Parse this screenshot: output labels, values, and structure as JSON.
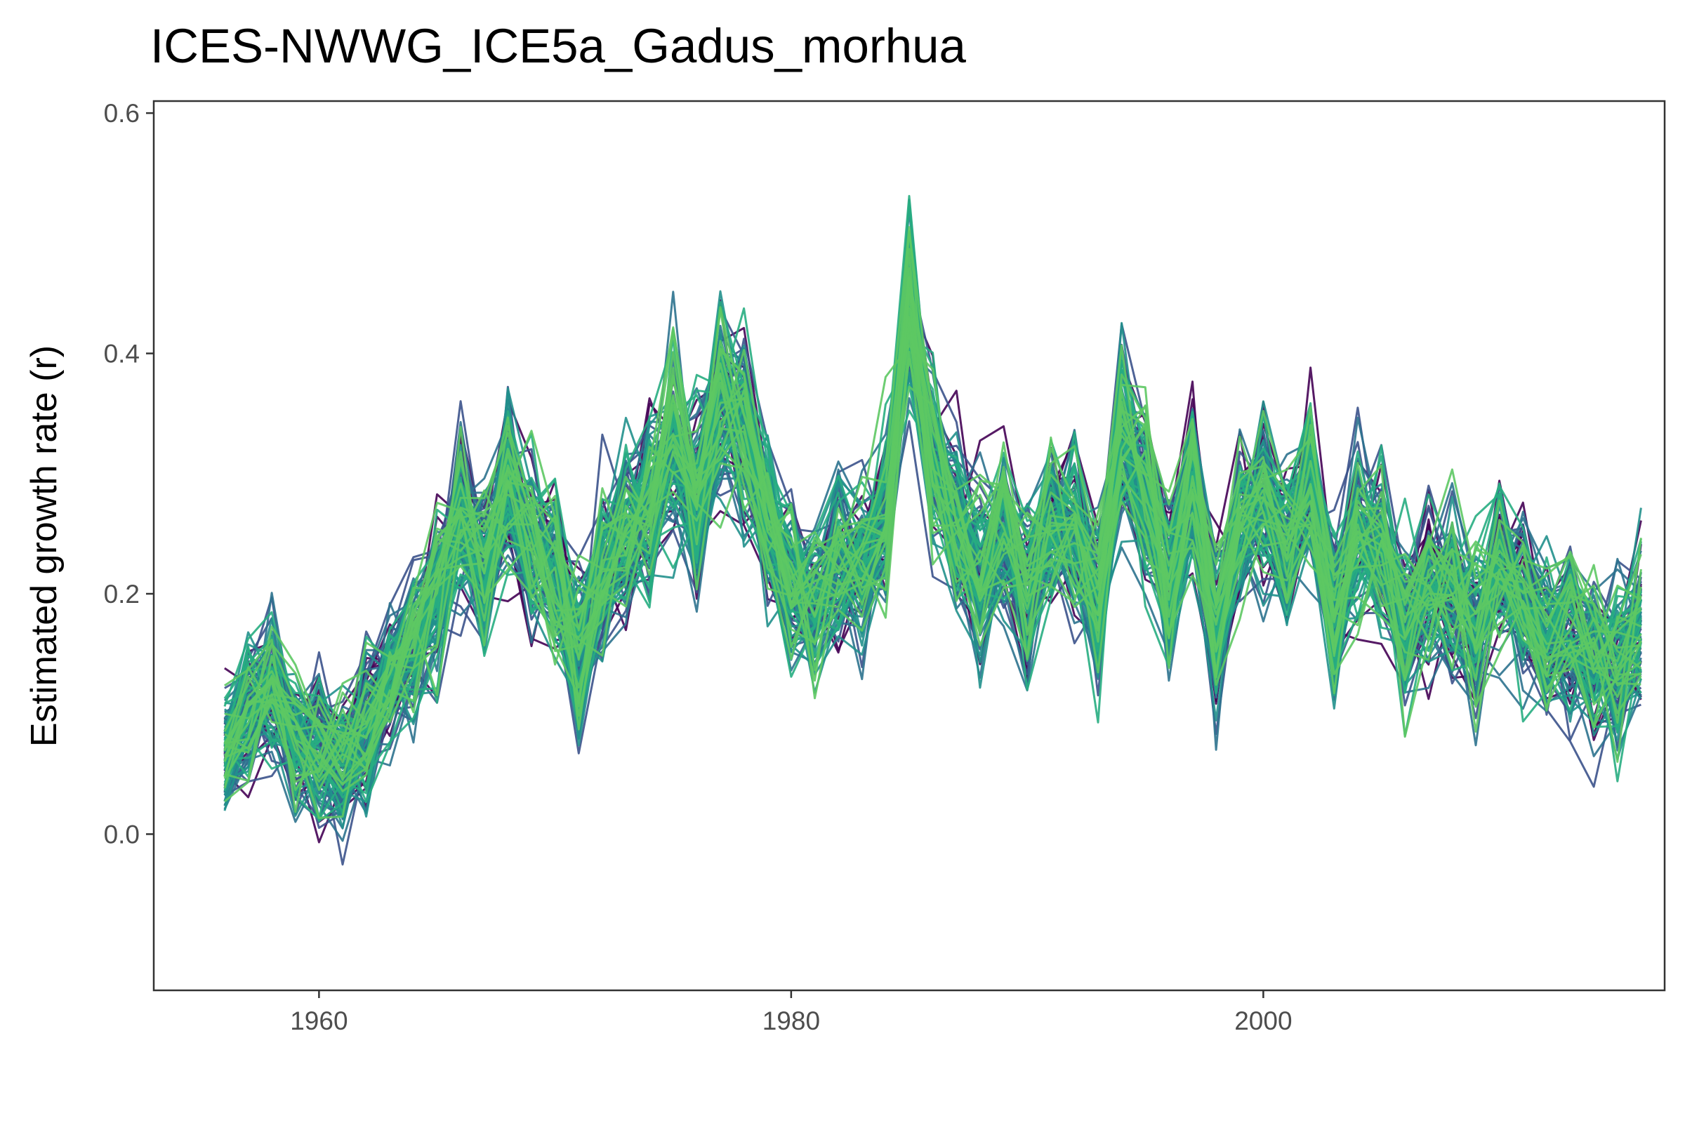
{
  "chart_data": {
    "type": "line",
    "title": "ICES-NWWG_ICE5a_Gadus_morhua",
    "xlabel": "",
    "ylabel": "Estimated growth rate (r)",
    "xlim": [
      1953,
      2017
    ],
    "ylim": [
      -0.13,
      0.61
    ],
    "x_ticks": [
      1960,
      1980,
      2000
    ],
    "y_ticks": [
      0.0,
      0.2,
      0.4,
      0.6
    ],
    "x_tick_labels": [
      "1960",
      "1980",
      "2000"
    ],
    "y_tick_labels": [
      "0.0",
      "0.2",
      "0.4",
      "0.6"
    ],
    "grid": false,
    "legend": "none",
    "palette": [
      "#440154",
      "#3b528b",
      "#2c728e",
      "#21908c",
      "#27ad81",
      "#5dc863"
    ],
    "ensemble_size": 120,
    "x": [
      1956,
      1957,
      1958,
      1959,
      1960,
      1961,
      1962,
      1963,
      1964,
      1965,
      1966,
      1967,
      1968,
      1969,
      1970,
      1971,
      1972,
      1973,
      1974,
      1975,
      1976,
      1977,
      1978,
      1979,
      1980,
      1981,
      1982,
      1983,
      1984,
      1985,
      1986,
      1987,
      1988,
      1989,
      1990,
      1991,
      1992,
      1993,
      1994,
      1995,
      1996,
      1997,
      1998,
      1999,
      2000,
      2001,
      2002,
      2003,
      2004,
      2005,
      2006,
      2007,
      2008,
      2009,
      2010,
      2011,
      2012,
      2013,
      2014,
      2015,
      2016
    ],
    "central_values": [
      0.07,
      0.1,
      0.12,
      0.08,
      0.07,
      0.06,
      0.09,
      0.13,
      0.16,
      0.2,
      0.26,
      0.22,
      0.29,
      0.24,
      0.22,
      0.15,
      0.22,
      0.25,
      0.27,
      0.33,
      0.28,
      0.36,
      0.34,
      0.26,
      0.21,
      0.19,
      0.23,
      0.22,
      0.26,
      0.43,
      0.31,
      0.26,
      0.22,
      0.25,
      0.2,
      0.26,
      0.25,
      0.19,
      0.33,
      0.29,
      0.21,
      0.29,
      0.17,
      0.26,
      0.28,
      0.24,
      0.29,
      0.18,
      0.25,
      0.24,
      0.17,
      0.21,
      0.2,
      0.18,
      0.22,
      0.2,
      0.16,
      0.17,
      0.15,
      0.14,
      0.18
    ],
    "spread": [
      0.04,
      0.05,
      0.05,
      0.05,
      0.05,
      0.05,
      0.05,
      0.05,
      0.05,
      0.06,
      0.06,
      0.06,
      0.06,
      0.06,
      0.06,
      0.06,
      0.06,
      0.06,
      0.06,
      0.07,
      0.07,
      0.07,
      0.07,
      0.06,
      0.06,
      0.06,
      0.06,
      0.06,
      0.06,
      0.07,
      0.06,
      0.06,
      0.06,
      0.06,
      0.06,
      0.06,
      0.06,
      0.06,
      0.06,
      0.07,
      0.06,
      0.06,
      0.06,
      0.06,
      0.06,
      0.06,
      0.06,
      0.06,
      0.06,
      0.06,
      0.06,
      0.06,
      0.06,
      0.06,
      0.06,
      0.06,
      0.06,
      0.06,
      0.06,
      0.06,
      0.06
    ]
  }
}
